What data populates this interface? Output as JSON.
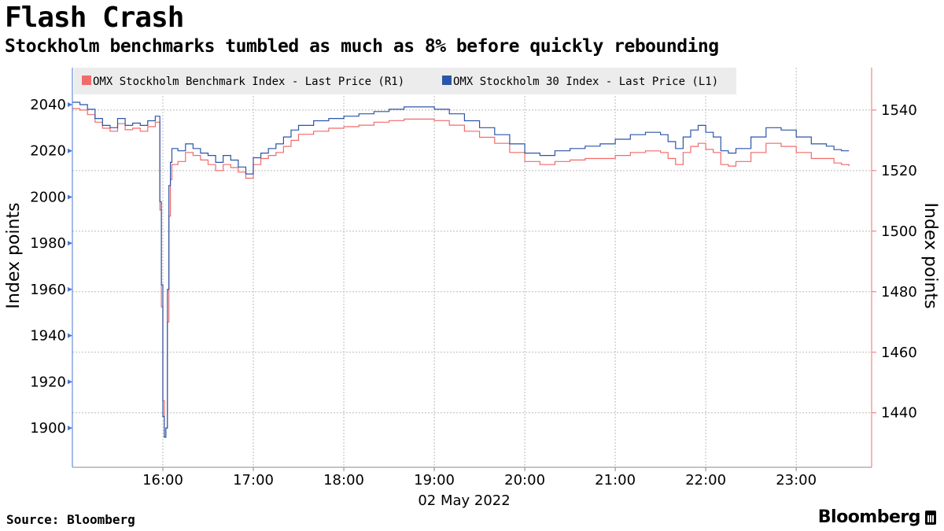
{
  "header": {
    "title": "Flash Crash",
    "subtitle": "Stockholm benchmarks tumbled as much as 8% before quickly rebounding"
  },
  "footer": {
    "source": "Source: Bloomberg",
    "brand": "Bloomberg"
  },
  "colors": {
    "benchmark": "#f06b6b",
    "omx30": "#2b55a8",
    "left_axis": "#4a76d1",
    "right_axis": "#f06b6b",
    "grid": "#bbbbbb"
  },
  "chart_data": {
    "type": "line",
    "date_label": "02 May 2022",
    "x_ticks": [
      "16:00",
      "17:00",
      "18:00",
      "19:00",
      "20:00",
      "21:00",
      "22:00",
      "23:00"
    ],
    "x_range": [
      "15:00",
      "23:50"
    ],
    "y_left": {
      "label": "Index points",
      "ticks": [
        1900,
        1920,
        1940,
        1960,
        1980,
        2000,
        2020,
        2040
      ],
      "range": [
        1883,
        2056
      ]
    },
    "y_right": {
      "label": "Index points",
      "ticks": [
        1440,
        1460,
        1480,
        1500,
        1520,
        1540
      ],
      "range": [
        1422,
        1554
      ]
    },
    "grid": true,
    "legend_position": "top-left",
    "series": [
      {
        "name": "OMX Stockholm Benchmark Index - Last Price (R1)",
        "axis": "right",
        "points": [
          [
            "15:00",
            1540.5
          ],
          [
            "15:05",
            1540.0
          ],
          [
            "15:10",
            1538.5
          ],
          [
            "15:15",
            1536.0
          ],
          [
            "15:20",
            1534.0
          ],
          [
            "15:25",
            1533.0
          ],
          [
            "15:30",
            1535.5
          ],
          [
            "15:35",
            1533.5
          ],
          [
            "15:40",
            1534.0
          ],
          [
            "15:45",
            1533.0
          ],
          [
            "15:50",
            1534.5
          ],
          [
            "15:55",
            1536.0
          ],
          [
            "15:58",
            1507.0
          ],
          [
            "15:59",
            1475.0
          ],
          [
            "16:00",
            1444.0
          ],
          [
            "16:01",
            1432.0
          ],
          [
            "16:02",
            1435.0
          ],
          [
            "16:03",
            1470.0
          ],
          [
            "16:04",
            1505.0
          ],
          [
            "16:05",
            1517.0
          ],
          [
            "16:06",
            1522.0
          ],
          [
            "16:10",
            1523.0
          ],
          [
            "16:15",
            1526.0
          ],
          [
            "16:20",
            1525.0
          ],
          [
            "16:25",
            1523.5
          ],
          [
            "16:30",
            1522.0
          ],
          [
            "16:35",
            1520.0
          ],
          [
            "16:40",
            1522.0
          ],
          [
            "16:45",
            1521.0
          ],
          [
            "16:50",
            1519.5
          ],
          [
            "16:55",
            1517.5
          ],
          [
            "17:00",
            1522.0
          ],
          [
            "17:05",
            1524.0
          ],
          [
            "17:10",
            1525.0
          ],
          [
            "17:15",
            1526.0
          ],
          [
            "17:20",
            1528.0
          ],
          [
            "17:25",
            1530.0
          ],
          [
            "17:30",
            1532.0
          ],
          [
            "17:40",
            1533.0
          ],
          [
            "17:50",
            1534.0
          ],
          [
            "18:00",
            1534.5
          ],
          [
            "18:10",
            1535.0
          ],
          [
            "18:20",
            1536.0
          ],
          [
            "18:30",
            1536.5
          ],
          [
            "18:40",
            1537.0
          ],
          [
            "18:50",
            1537.0
          ],
          [
            "19:00",
            1536.5
          ],
          [
            "19:10",
            1535.0
          ],
          [
            "19:20",
            1533.0
          ],
          [
            "19:30",
            1531.0
          ],
          [
            "19:40",
            1529.0
          ],
          [
            "19:50",
            1526.0
          ],
          [
            "20:00",
            1523.0
          ],
          [
            "20:10",
            1522.0
          ],
          [
            "20:20",
            1523.0
          ],
          [
            "20:30",
            1523.5
          ],
          [
            "20:40",
            1524.0
          ],
          [
            "20:50",
            1524.0
          ],
          [
            "21:00",
            1525.0
          ],
          [
            "21:10",
            1526.0
          ],
          [
            "21:20",
            1526.5
          ],
          [
            "21:30",
            1526.0
          ],
          [
            "21:35",
            1524.0
          ],
          [
            "21:40",
            1522.0
          ],
          [
            "21:45",
            1526.0
          ],
          [
            "21:50",
            1528.0
          ],
          [
            "21:55",
            1529.0
          ],
          [
            "22:00",
            1527.0
          ],
          [
            "22:05",
            1526.0
          ],
          [
            "22:10",
            1522.0
          ],
          [
            "22:15",
            1521.5
          ],
          [
            "22:20",
            1523.0
          ],
          [
            "22:30",
            1526.0
          ],
          [
            "22:40",
            1529.0
          ],
          [
            "22:50",
            1528.0
          ],
          [
            "23:00",
            1526.0
          ],
          [
            "23:10",
            1524.0
          ],
          [
            "23:20",
            1524.0
          ],
          [
            "23:25",
            1522.5
          ],
          [
            "23:30",
            1522.0
          ],
          [
            "23:35",
            1521.5
          ]
        ]
      },
      {
        "name": "OMX Stockholm 30 Index - Last Price (L1)",
        "axis": "left",
        "points": [
          [
            "15:00",
            2041.0
          ],
          [
            "15:05",
            2040.0
          ],
          [
            "15:10",
            2038.0
          ],
          [
            "15:15",
            2034.0
          ],
          [
            "15:20",
            2031.0
          ],
          [
            "15:25",
            2030.0
          ],
          [
            "15:30",
            2034.0
          ],
          [
            "15:35",
            2031.0
          ],
          [
            "15:40",
            2032.0
          ],
          [
            "15:45",
            2031.0
          ],
          [
            "15:50",
            2033.0
          ],
          [
            "15:55",
            2035.0
          ],
          [
            "15:58",
            1998.0
          ],
          [
            "15:59",
            1962.0
          ],
          [
            "16:00",
            1905.0
          ],
          [
            "16:01",
            1896.0
          ],
          [
            "16:02",
            1900.0
          ],
          [
            "16:03",
            1960.0
          ],
          [
            "16:04",
            2005.0
          ],
          [
            "16:05",
            2015.0
          ],
          [
            "16:06",
            2021.0
          ],
          [
            "16:10",
            2020.0
          ],
          [
            "16:15",
            2023.0
          ],
          [
            "16:20",
            2021.0
          ],
          [
            "16:25",
            2019.0
          ],
          [
            "16:30",
            2018.0
          ],
          [
            "16:35",
            2015.0
          ],
          [
            "16:40",
            2018.0
          ],
          [
            "16:45",
            2016.0
          ],
          [
            "16:50",
            2013.0
          ],
          [
            "16:55",
            2010.0
          ],
          [
            "17:00",
            2017.0
          ],
          [
            "17:05",
            2019.0
          ],
          [
            "17:10",
            2021.0
          ],
          [
            "17:15",
            2023.0
          ],
          [
            "17:20",
            2026.0
          ],
          [
            "17:25",
            2029.0
          ],
          [
            "17:30",
            2031.0
          ],
          [
            "17:40",
            2033.0
          ],
          [
            "17:50",
            2034.0
          ],
          [
            "18:00",
            2035.0
          ],
          [
            "18:10",
            2036.0
          ],
          [
            "18:20",
            2037.0
          ],
          [
            "18:30",
            2038.0
          ],
          [
            "18:40",
            2039.0
          ],
          [
            "18:50",
            2039.0
          ],
          [
            "19:00",
            2038.0
          ],
          [
            "19:10",
            2036.0
          ],
          [
            "19:20",
            2033.0
          ],
          [
            "19:30",
            2030.0
          ],
          [
            "19:40",
            2027.0
          ],
          [
            "19:50",
            2023.0
          ],
          [
            "20:00",
            2019.0
          ],
          [
            "20:10",
            2018.0
          ],
          [
            "20:20",
            2020.0
          ],
          [
            "20:30",
            2021.0
          ],
          [
            "20:40",
            2022.0
          ],
          [
            "20:50",
            2023.0
          ],
          [
            "21:00",
            2025.0
          ],
          [
            "21:10",
            2027.0
          ],
          [
            "21:20",
            2028.0
          ],
          [
            "21:30",
            2027.0
          ],
          [
            "21:35",
            2024.0
          ],
          [
            "21:40",
            2021.0
          ],
          [
            "21:45",
            2026.0
          ],
          [
            "21:50",
            2029.0
          ],
          [
            "21:55",
            2031.0
          ],
          [
            "22:00",
            2028.0
          ],
          [
            "22:05",
            2026.0
          ],
          [
            "22:10",
            2020.0
          ],
          [
            "22:15",
            2019.0
          ],
          [
            "22:20",
            2021.0
          ],
          [
            "22:30",
            2026.0
          ],
          [
            "22:40",
            2030.0
          ],
          [
            "22:50",
            2029.0
          ],
          [
            "23:00",
            2026.0
          ],
          [
            "23:10",
            2023.0
          ],
          [
            "23:20",
            2022.0
          ],
          [
            "23:25",
            2020.5
          ],
          [
            "23:30",
            2020.0
          ],
          [
            "23:35",
            2020.0
          ]
        ]
      }
    ]
  }
}
